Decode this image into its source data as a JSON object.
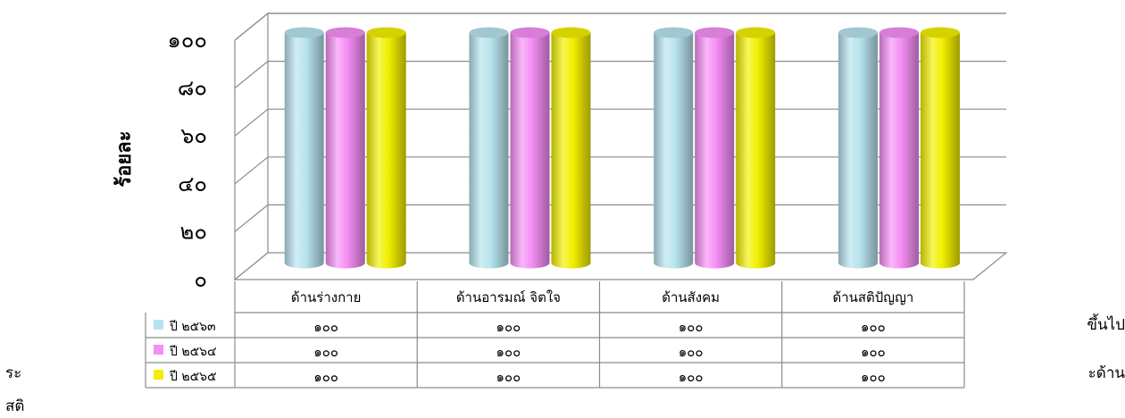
{
  "chart_data": {
    "type": "bar",
    "style": "3d-cylinder",
    "ylabel": "ร้อยละ",
    "xlabel": "",
    "ylim": [
      0,
      100
    ],
    "yticks": [
      "๐",
      "๒๐",
      "๔๐",
      "๖๐",
      "๘๐",
      "๑๐๐"
    ],
    "categories": [
      "ด้านร่างกาย",
      "ด้านอารมณ์ จิตใจ",
      "ด้านสังคม",
      "ด้านสติปัญญา"
    ],
    "series": [
      {
        "name": "ปี ๒๕๖๓",
        "color": "#b7e3ee",
        "values": [
          100,
          100,
          100,
          100
        ],
        "labels": [
          "๑๐๐",
          "๑๐๐",
          "๑๐๐",
          "๑๐๐"
        ]
      },
      {
        "name": "ปี ๒๕๖๔",
        "color": "#f58ef5",
        "values": [
          100,
          100,
          100,
          100
        ],
        "labels": [
          "๑๐๐",
          "๑๐๐",
          "๑๐๐",
          "๑๐๐"
        ]
      },
      {
        "name": "ปี ๒๕๖๕",
        "color": "#f2ef00",
        "values": [
          100,
          100,
          100,
          100
        ],
        "labels": [
          "๑๐๐",
          "๑๐๐",
          "๑๐๐",
          "๑๐๐"
        ]
      }
    ],
    "grid": true,
    "legend": "data-table"
  },
  "fragments": {
    "left_1": "ระ",
    "left_2": "สติ",
    "right_1": "ขึ้นไป",
    "right_2": "ะด้าน"
  }
}
